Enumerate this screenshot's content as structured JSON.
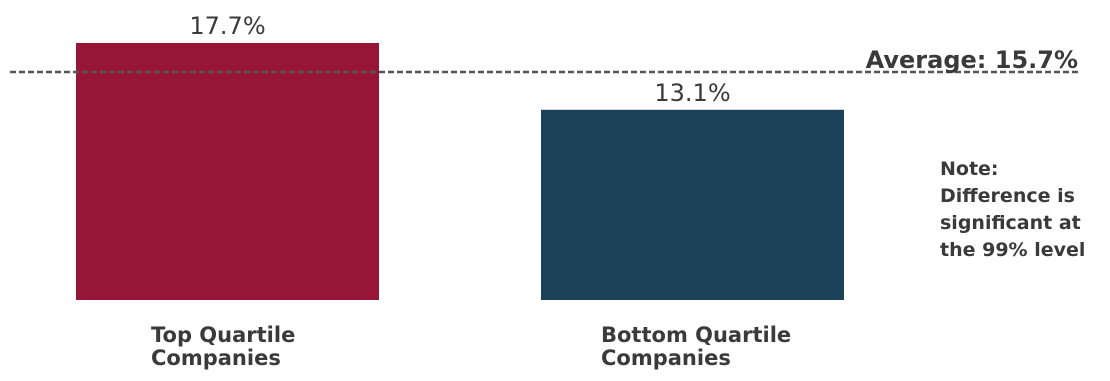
{
  "chart_data": {
    "type": "bar",
    "categories": [
      "Top Quartile Companies",
      "Bottom Quartile Companies"
    ],
    "category_lines": [
      [
        "Top Quartile",
        "Companies"
      ],
      [
        "Bottom Quartile",
        "Companies"
      ]
    ],
    "values": [
      17.7,
      13.1
    ],
    "value_labels": [
      "17.7%",
      "13.1%"
    ],
    "colors": [
      "#971638",
      "#1c4259"
    ],
    "ylim": [
      0,
      17.7
    ],
    "reference_line": {
      "value": 15.7,
      "label": "Average: 15.7%",
      "style": "dashed",
      "color": "#555555"
    },
    "annotation": {
      "lines": [
        "Note:",
        "Difference is",
        "significant at",
        "the 99% level"
      ]
    },
    "title": "",
    "xlabel": "",
    "ylabel": "",
    "grid": false,
    "legend": "none"
  }
}
